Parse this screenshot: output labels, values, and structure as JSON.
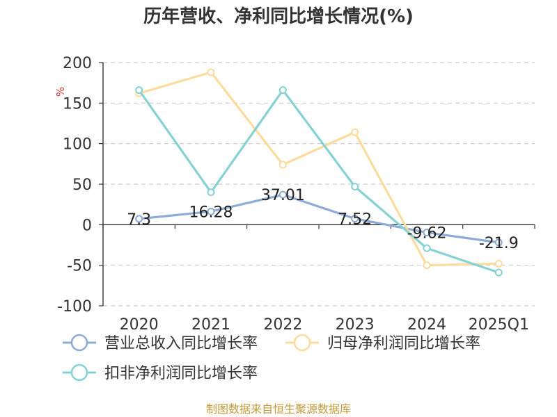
{
  "chart_data": {
    "type": "line",
    "title": "历年营收、净利同比增长情况(%)",
    "ylabel": "%",
    "ylim": [
      -100,
      200
    ],
    "yticks": [
      200,
      150,
      100,
      50,
      0,
      -50,
      -100
    ],
    "grid": true,
    "legend_position": "bottom",
    "categories": [
      "2020",
      "2021",
      "2022",
      "2023",
      "2024",
      "2025Q1"
    ],
    "series": [
      {
        "name": "营业总收入同比增长率",
        "color": "#8eabd6",
        "values": [
          7.3,
          16.28,
          37.01,
          7.52,
          -9.62,
          -21.9
        ],
        "labels": [
          "7.3",
          "16.28",
          "37.01",
          "7.52",
          "-9.62",
          "-21.9"
        ]
      },
      {
        "name": "归母净利润同比增长率",
        "color": "#fbdc9c",
        "values": [
          162,
          188,
          74,
          114,
          -50,
          -48
        ]
      },
      {
        "name": "扣非净利润同比增长率",
        "color": "#86d1d4",
        "values": [
          166,
          40,
          166,
          47,
          -29,
          -59
        ]
      }
    ]
  },
  "source": "制图数据来自恒生聚源数据库"
}
